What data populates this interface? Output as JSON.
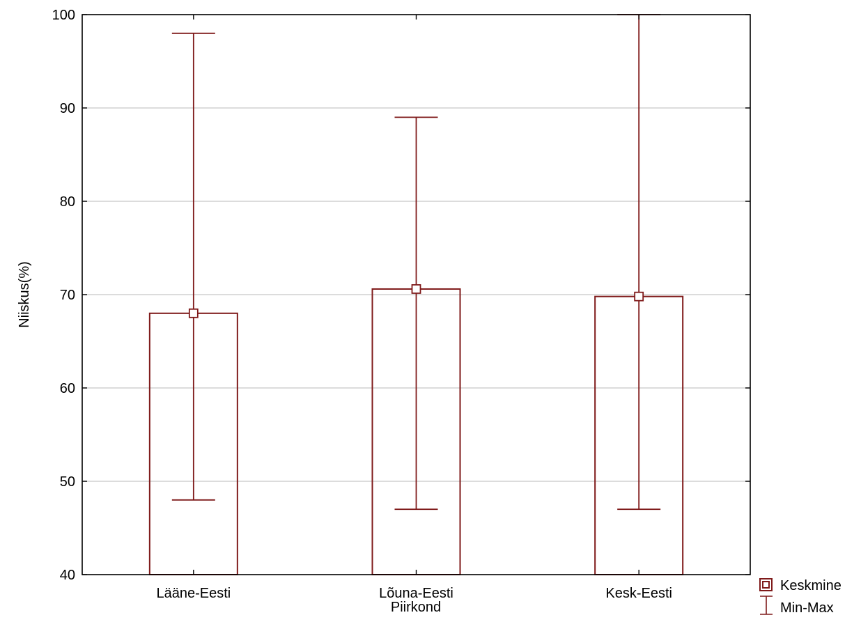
{
  "chart_data": {
    "type": "bar",
    "categories": [
      "Lääne-Eesti",
      "Lõuna-Eesti",
      "Kesk-Eesti"
    ],
    "series": [
      {
        "name": "Keskmine",
        "values": [
          68.0,
          70.6,
          69.8
        ]
      },
      {
        "name": "Min-Max",
        "min": [
          48,
          47,
          47
        ],
        "max": [
          98,
          89,
          100
        ]
      }
    ],
    "xlabel": "Piirkond",
    "ylabel": "Niiskus(%)",
    "ylim": [
      40,
      100
    ],
    "yticks": [
      40,
      50,
      60,
      70,
      80,
      90,
      100
    ],
    "grid": true,
    "legend_position": "bottom-right",
    "colors": {
      "series": "#7f1a1a",
      "grid": "#d0d0d0",
      "axis": "#000000"
    }
  }
}
